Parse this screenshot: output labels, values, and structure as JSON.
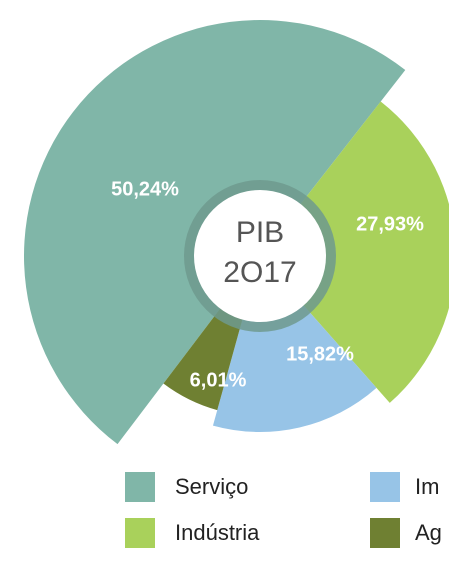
{
  "chart_data": {
    "type": "pie",
    "center_text": [
      "PIB",
      "2O17"
    ],
    "categories": [
      "Serviço",
      "Indústria",
      "Im",
      "Ag"
    ],
    "values": [
      50.24,
      27.93,
      15.82,
      6.01
    ],
    "value_labels": [
      "50,24%",
      "27,93%",
      "15,82%",
      "6,01%"
    ],
    "colors": [
      "#80b6a8",
      "#a9d15b",
      "#97c4e7",
      "#6f8032"
    ],
    "legend": "bottom"
  }
}
